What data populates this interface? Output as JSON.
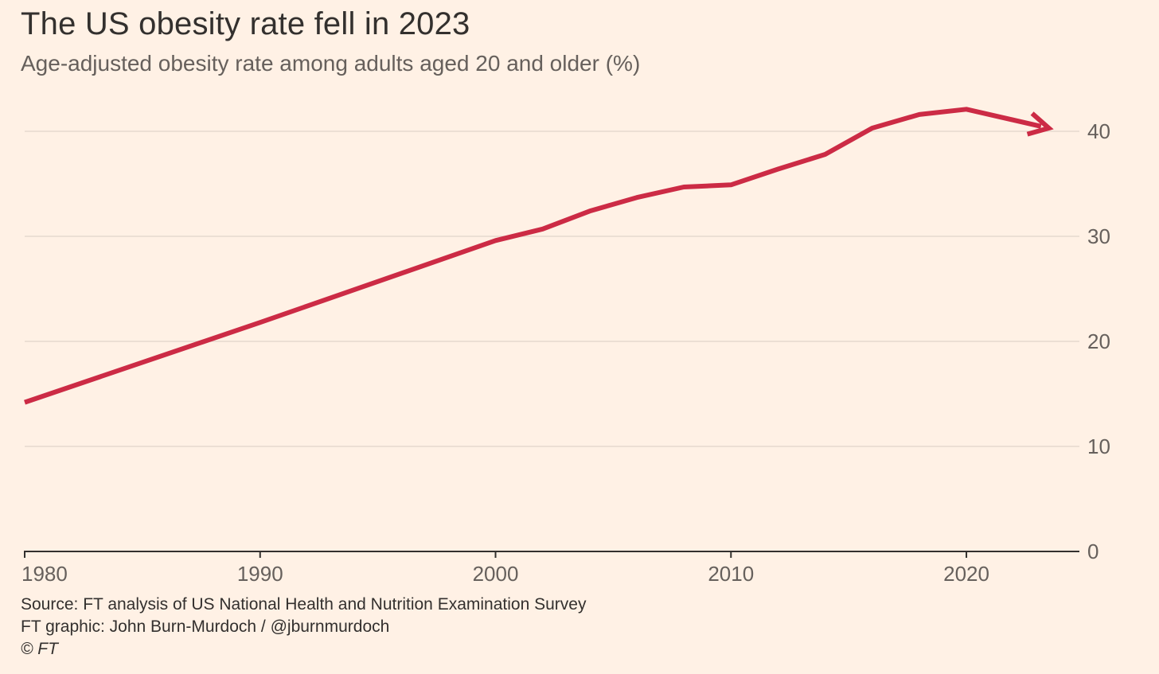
{
  "title": "The US obesity rate fell in 2023",
  "subtitle": "Age-adjusted obesity rate among adults aged 20 and older (%)",
  "footer": {
    "source": "Source: FT analysis of US National Health and Nutrition Examination Survey",
    "graphic": "FT graphic: John Burn-Murdoch / @jburnmurdoch",
    "copyright": "© FT"
  },
  "colors": {
    "background": "#FFF1E5",
    "line": "#CC2B45",
    "grid": "#E6D9CE",
    "axis": "#33302E",
    "text": "#33302E"
  },
  "chart_data": {
    "type": "line",
    "title": "The US obesity rate fell in 2023",
    "subtitle": "Age-adjusted obesity rate among adults aged 20 and older (%)",
    "xlabel": "",
    "ylabel": "",
    "xlim": [
      1980,
      2024.8
    ],
    "ylim": [
      0,
      42
    ],
    "x_ticks": [
      1980,
      1990,
      2000,
      2010,
      2020
    ],
    "y_ticks": [
      0,
      10,
      20,
      30,
      40
    ],
    "y_axis_side": "right",
    "grid": true,
    "legend": "none",
    "series": [
      {
        "x": [
          1980,
          1990,
          2000,
          2002,
          2004,
          2006,
          2008,
          2010,
          2012,
          2014,
          2016,
          2018,
          2020,
          2023.5
        ],
        "y": [
          14.2,
          21.8,
          29.6,
          30.7,
          32.4,
          33.7,
          34.7,
          34.9,
          36.4,
          37.8,
          40.3,
          41.6,
          42.1,
          40.3
        ]
      }
    ]
  }
}
